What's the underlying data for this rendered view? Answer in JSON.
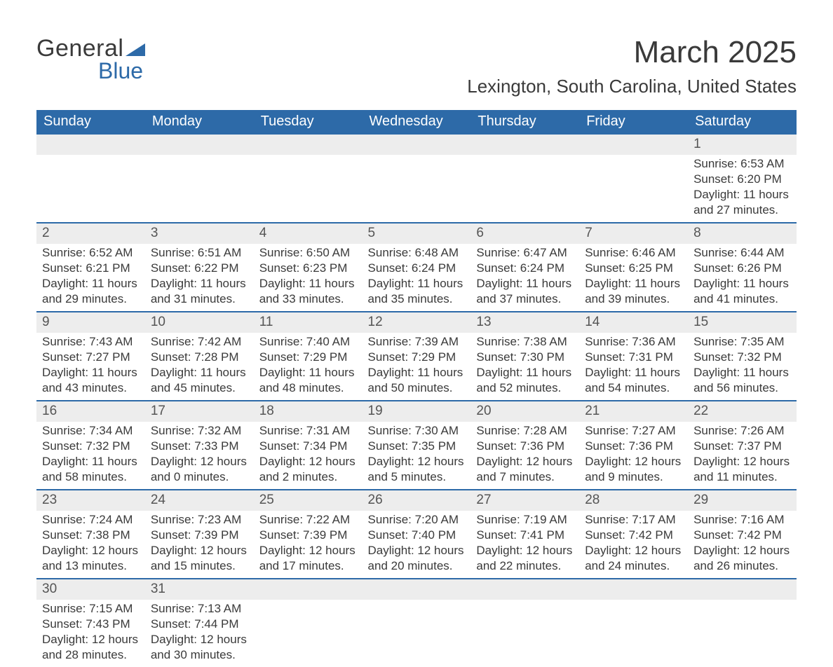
{
  "logo": {
    "word1": "General",
    "word2": "Blue",
    "triangle_color": "#2d6aa8"
  },
  "title": "March 2025",
  "location": "Lexington, South Carolina, United States",
  "header_bg": "#2d6aa8",
  "header_fg": "#ffffff",
  "row_border_color": "#2d6aa8",
  "daynum_bg": "#ededed",
  "text_color": "#3a3a3a",
  "days_of_week": [
    "Sunday",
    "Monday",
    "Tuesday",
    "Wednesday",
    "Thursday",
    "Friday",
    "Saturday"
  ],
  "weeks": [
    [
      null,
      null,
      null,
      null,
      null,
      null,
      {
        "n": "1",
        "l": [
          "Sunrise: 6:53 AM",
          "Sunset: 6:20 PM",
          "Daylight: 11 hours and 27 minutes."
        ]
      }
    ],
    [
      {
        "n": "2",
        "l": [
          "Sunrise: 6:52 AM",
          "Sunset: 6:21 PM",
          "Daylight: 11 hours and 29 minutes."
        ]
      },
      {
        "n": "3",
        "l": [
          "Sunrise: 6:51 AM",
          "Sunset: 6:22 PM",
          "Daylight: 11 hours and 31 minutes."
        ]
      },
      {
        "n": "4",
        "l": [
          "Sunrise: 6:50 AM",
          "Sunset: 6:23 PM",
          "Daylight: 11 hours and 33 minutes."
        ]
      },
      {
        "n": "5",
        "l": [
          "Sunrise: 6:48 AM",
          "Sunset: 6:24 PM",
          "Daylight: 11 hours and 35 minutes."
        ]
      },
      {
        "n": "6",
        "l": [
          "Sunrise: 6:47 AM",
          "Sunset: 6:24 PM",
          "Daylight: 11 hours and 37 minutes."
        ]
      },
      {
        "n": "7",
        "l": [
          "Sunrise: 6:46 AM",
          "Sunset: 6:25 PM",
          "Daylight: 11 hours and 39 minutes."
        ]
      },
      {
        "n": "8",
        "l": [
          "Sunrise: 6:44 AM",
          "Sunset: 6:26 PM",
          "Daylight: 11 hours and 41 minutes."
        ]
      }
    ],
    [
      {
        "n": "9",
        "l": [
          "Sunrise: 7:43 AM",
          "Sunset: 7:27 PM",
          "Daylight: 11 hours and 43 minutes."
        ]
      },
      {
        "n": "10",
        "l": [
          "Sunrise: 7:42 AM",
          "Sunset: 7:28 PM",
          "Daylight: 11 hours and 45 minutes."
        ]
      },
      {
        "n": "11",
        "l": [
          "Sunrise: 7:40 AM",
          "Sunset: 7:29 PM",
          "Daylight: 11 hours and 48 minutes."
        ]
      },
      {
        "n": "12",
        "l": [
          "Sunrise: 7:39 AM",
          "Sunset: 7:29 PM",
          "Daylight: 11 hours and 50 minutes."
        ]
      },
      {
        "n": "13",
        "l": [
          "Sunrise: 7:38 AM",
          "Sunset: 7:30 PM",
          "Daylight: 11 hours and 52 minutes."
        ]
      },
      {
        "n": "14",
        "l": [
          "Sunrise: 7:36 AM",
          "Sunset: 7:31 PM",
          "Daylight: 11 hours and 54 minutes."
        ]
      },
      {
        "n": "15",
        "l": [
          "Sunrise: 7:35 AM",
          "Sunset: 7:32 PM",
          "Daylight: 11 hours and 56 minutes."
        ]
      }
    ],
    [
      {
        "n": "16",
        "l": [
          "Sunrise: 7:34 AM",
          "Sunset: 7:32 PM",
          "Daylight: 11 hours and 58 minutes."
        ]
      },
      {
        "n": "17",
        "l": [
          "Sunrise: 7:32 AM",
          "Sunset: 7:33 PM",
          "Daylight: 12 hours and 0 minutes."
        ]
      },
      {
        "n": "18",
        "l": [
          "Sunrise: 7:31 AM",
          "Sunset: 7:34 PM",
          "Daylight: 12 hours and 2 minutes."
        ]
      },
      {
        "n": "19",
        "l": [
          "Sunrise: 7:30 AM",
          "Sunset: 7:35 PM",
          "Daylight: 12 hours and 5 minutes."
        ]
      },
      {
        "n": "20",
        "l": [
          "Sunrise: 7:28 AM",
          "Sunset: 7:36 PM",
          "Daylight: 12 hours and 7 minutes."
        ]
      },
      {
        "n": "21",
        "l": [
          "Sunrise: 7:27 AM",
          "Sunset: 7:36 PM",
          "Daylight: 12 hours and 9 minutes."
        ]
      },
      {
        "n": "22",
        "l": [
          "Sunrise: 7:26 AM",
          "Sunset: 7:37 PM",
          "Daylight: 12 hours and 11 minutes."
        ]
      }
    ],
    [
      {
        "n": "23",
        "l": [
          "Sunrise: 7:24 AM",
          "Sunset: 7:38 PM",
          "Daylight: 12 hours and 13 minutes."
        ]
      },
      {
        "n": "24",
        "l": [
          "Sunrise: 7:23 AM",
          "Sunset: 7:39 PM",
          "Daylight: 12 hours and 15 minutes."
        ]
      },
      {
        "n": "25",
        "l": [
          "Sunrise: 7:22 AM",
          "Sunset: 7:39 PM",
          "Daylight: 12 hours and 17 minutes."
        ]
      },
      {
        "n": "26",
        "l": [
          "Sunrise: 7:20 AM",
          "Sunset: 7:40 PM",
          "Daylight: 12 hours and 20 minutes."
        ]
      },
      {
        "n": "27",
        "l": [
          "Sunrise: 7:19 AM",
          "Sunset: 7:41 PM",
          "Daylight: 12 hours and 22 minutes."
        ]
      },
      {
        "n": "28",
        "l": [
          "Sunrise: 7:17 AM",
          "Sunset: 7:42 PM",
          "Daylight: 12 hours and 24 minutes."
        ]
      },
      {
        "n": "29",
        "l": [
          "Sunrise: 7:16 AM",
          "Sunset: 7:42 PM",
          "Daylight: 12 hours and 26 minutes."
        ]
      }
    ],
    [
      {
        "n": "30",
        "l": [
          "Sunrise: 7:15 AM",
          "Sunset: 7:43 PM",
          "Daylight: 12 hours and 28 minutes."
        ]
      },
      {
        "n": "31",
        "l": [
          "Sunrise: 7:13 AM",
          "Sunset: 7:44 PM",
          "Daylight: 12 hours and 30 minutes."
        ]
      },
      null,
      null,
      null,
      null,
      null
    ]
  ]
}
